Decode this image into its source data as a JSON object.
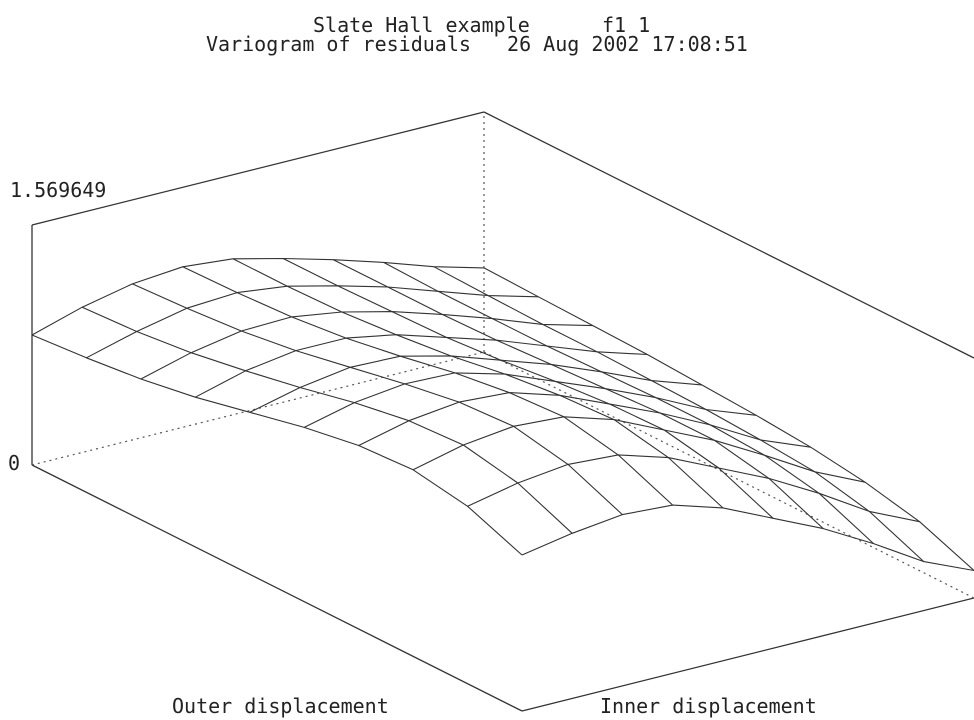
{
  "chart_data": {
    "type": "surface",
    "title_line1": "Slate Hall example      f1 1",
    "title_line2": "Variogram of residuals   26 Aug 2002 17:08:51",
    "xlabel": "Outer displacement",
    "ylabel": "Inner displacement",
    "zlim": [
      0,
      1.569649
    ],
    "z_tick_labels": [
      "1.569649",
      "0"
    ],
    "grid_size": [
      10,
      10
    ],
    "z": [
      [
        1.02,
        1.08,
        1.12,
        1.1,
        1.0,
        0.85,
        0.7,
        0.52,
        0.32,
        0.18
      ],
      [
        1.16,
        1.23,
        1.27,
        1.25,
        1.15,
        1.0,
        0.85,
        0.67,
        0.47,
        0.32
      ],
      [
        1.22,
        1.3,
        1.34,
        1.32,
        1.22,
        1.07,
        0.92,
        0.74,
        0.55,
        0.4
      ],
      [
        1.2,
        1.28,
        1.32,
        1.3,
        1.2,
        1.06,
        0.92,
        0.76,
        0.58,
        0.45
      ],
      [
        1.14,
        1.22,
        1.26,
        1.25,
        1.16,
        1.03,
        0.9,
        0.76,
        0.6,
        0.48
      ],
      [
        1.06,
        1.14,
        1.19,
        1.18,
        1.1,
        0.99,
        0.88,
        0.75,
        0.61,
        0.5
      ],
      [
        0.98,
        1.07,
        1.12,
        1.12,
        1.06,
        0.96,
        0.86,
        0.74,
        0.62,
        0.52
      ],
      [
        0.92,
        1.01,
        1.07,
        1.08,
        1.03,
        0.95,
        0.85,
        0.74,
        0.62,
        0.53
      ],
      [
        0.88,
        0.97,
        1.04,
        1.06,
        1.02,
        0.94,
        0.85,
        0.74,
        0.63,
        0.54
      ],
      [
        0.85,
        0.95,
        1.02,
        1.05,
        1.02,
        0.94,
        0.85,
        0.75,
        0.64,
        0.55
      ]
    ]
  }
}
